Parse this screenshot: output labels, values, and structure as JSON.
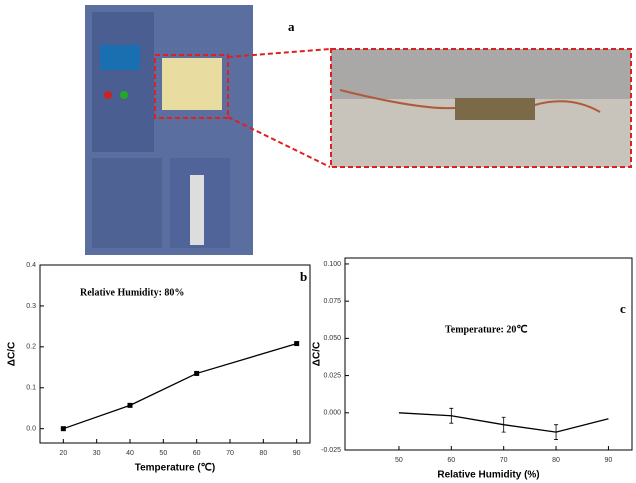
{
  "photo": {
    "label": "a"
  },
  "chart_data": [
    {
      "type": "line",
      "panel_label": "b",
      "annotation": "Relative Humidity: 80%",
      "x_label": "Temperature (℃)",
      "y_label": "ΔC/C",
      "x": [
        20,
        40,
        60,
        90
      ],
      "values": [
        0,
        0.057,
        0.135,
        0.208
      ],
      "color": "#000000",
      "marker": "square",
      "xlim": [
        13,
        94
      ],
      "xticks": [
        20,
        30,
        40,
        50,
        60,
        70,
        80,
        90
      ],
      "ylim": [
        -0.035,
        0.4
      ],
      "yticks": [
        {
          "value": 0,
          "label": "0.0"
        },
        0.1,
        0.2,
        0.3,
        0.4
      ]
    },
    {
      "type": "line",
      "panel_label": "c",
      "annotation": "Temperature: 20℃",
      "x_label": "Relative Humidity (%)",
      "y_label": "ΔC/C",
      "x": [
        50,
        60,
        70,
        80,
        90
      ],
      "values": [
        0,
        -0.002,
        -0.008,
        -0.013,
        -0.004
      ],
      "errors": [
        null,
        0.005,
        0.005,
        0.005,
        null
      ],
      "color": "#000000",
      "xlim": [
        39.7,
        94.5
      ],
      "xticks": [
        50,
        60,
        70,
        80,
        90
      ],
      "ylim": [
        -0.025,
        0.104
      ],
      "yticks": [
        {
          "value": -0.025,
          "label": "-0.025"
        },
        {
          "value": 0,
          "label": "0.000"
        },
        {
          "value": 0.025,
          "label": "0.025"
        },
        {
          "value": 0.05,
          "label": "0.050"
        },
        {
          "value": 0.075,
          "label": "0.075"
        },
        {
          "value": 0.1,
          "label": "0.100"
        }
      ]
    }
  ]
}
